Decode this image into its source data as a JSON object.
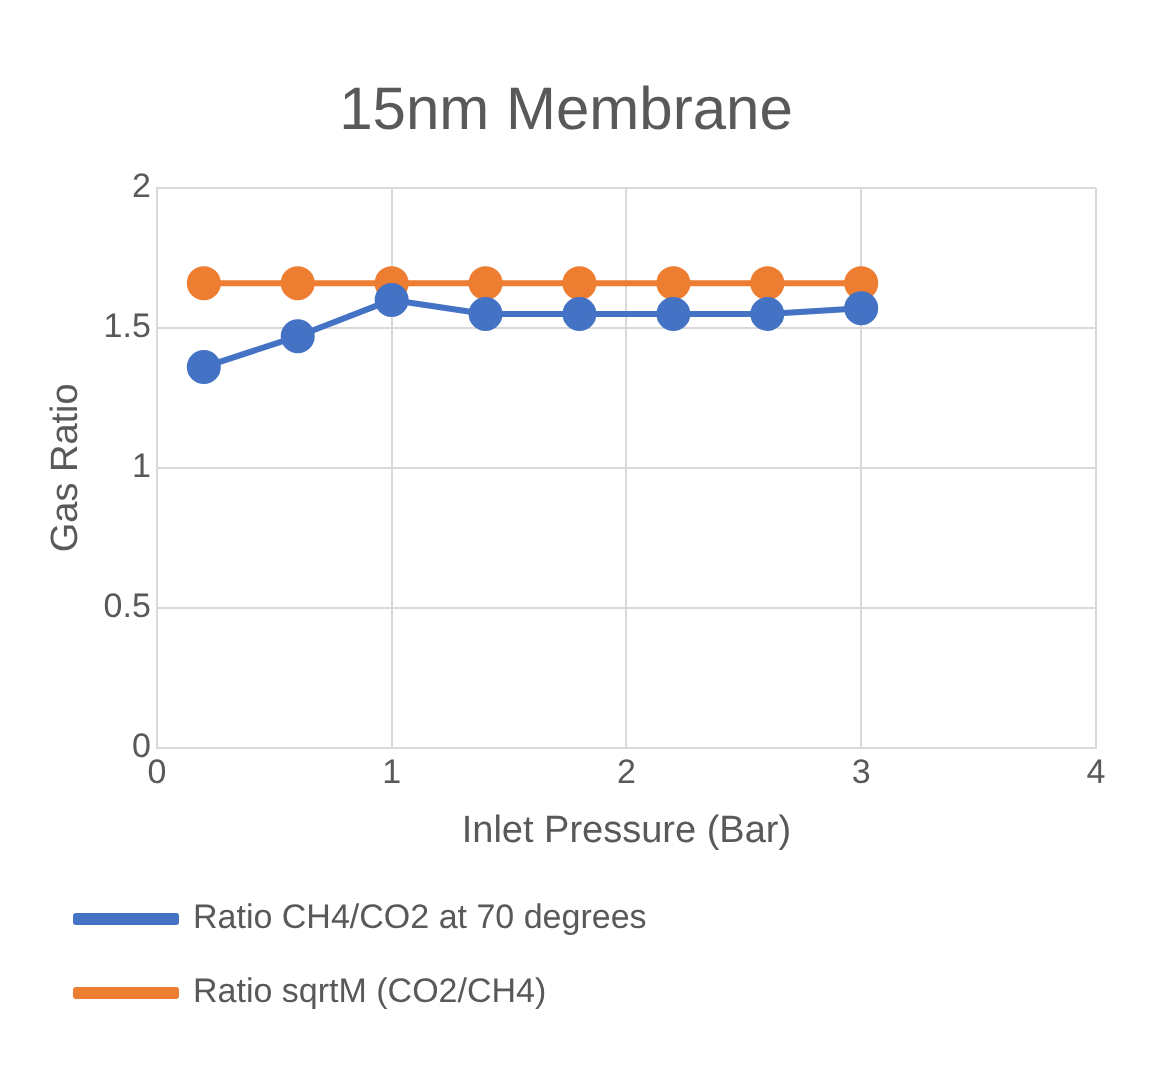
{
  "chart_data": {
    "type": "line",
    "title": "15nm Membrane",
    "xlabel": "Inlet Pressure (Bar)",
    "ylabel": "Gas Ratio",
    "x": [
      0.2,
      0.6,
      1.0,
      1.4,
      1.8,
      2.2,
      2.6,
      3.0
    ],
    "series": [
      {
        "name": "Ratio CH4/CO2 at 70 degrees",
        "color": "#4472c4",
        "values": [
          1.36,
          1.47,
          1.6,
          1.55,
          1.55,
          1.55,
          1.55,
          1.57
        ]
      },
      {
        "name": "Ratio sqrtM (CO2/CH4)",
        "color": "#ed7d31",
        "values": [
          1.66,
          1.66,
          1.66,
          1.66,
          1.66,
          1.66,
          1.66,
          1.66
        ]
      }
    ],
    "xlim": [
      0,
      4
    ],
    "xticks": [
      0,
      1,
      2,
      3,
      4
    ],
    "ylim": [
      0,
      2
    ],
    "yticks": [
      0,
      0.5,
      1,
      1.5,
      2
    ],
    "grid": true,
    "legend": "bottom",
    "marker": "circle",
    "line_style": "solid"
  }
}
